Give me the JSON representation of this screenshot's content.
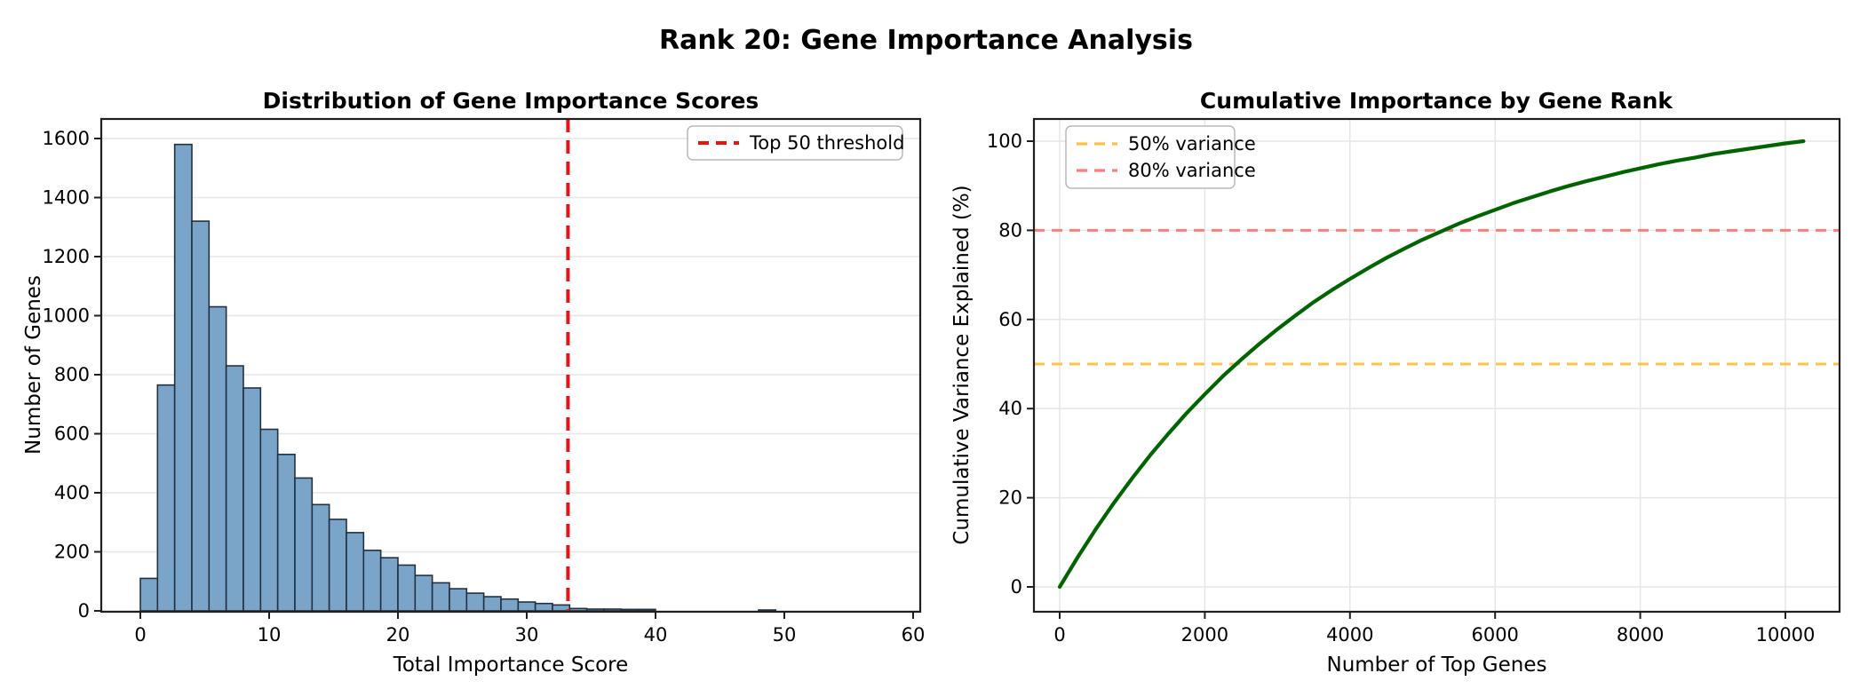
{
  "suptitle": "Rank 20: Gene Importance Analysis",
  "colors": {
    "bar_fill": "#7AA5C9",
    "bar_edge": "#22313F",
    "grid": "#E6E6E6",
    "spine": "#1F1F1F",
    "threshold_red": "#EE1111",
    "line_green": "#006400",
    "hline_orange": "#FFC04D",
    "hline_salmon": "#FB7E7E",
    "legend_border": "#B9B9B9",
    "legend_bg": "#FFFFFF"
  },
  "chart_data": [
    {
      "type": "bar",
      "subtype": "histogram",
      "title": "Distribution of Gene Importance Scores",
      "xlabel": "Total Importance Score",
      "ylabel": "Number of Genes",
      "xlim": [
        -3.0,
        60.6
      ],
      "ylim": [
        0,
        1666
      ],
      "xticks": [
        0,
        10,
        20,
        30,
        40,
        50,
        60
      ],
      "yticks": [
        0,
        200,
        400,
        600,
        800,
        1000,
        1200,
        1400,
        1600
      ],
      "grid": "horizontal",
      "bin_start": 0,
      "bin_width": 1.3333,
      "counts": [
        110,
        765,
        1580,
        1320,
        1030,
        830,
        755,
        615,
        530,
        450,
        360,
        310,
        265,
        205,
        180,
        155,
        120,
        95,
        75,
        60,
        48,
        40,
        30,
        25,
        20,
        8,
        6,
        6,
        5,
        5,
        0,
        0,
        0,
        0,
        0,
        0,
        3,
        0,
        0,
        0,
        0,
        0,
        0,
        0,
        0
      ],
      "threshold_line": {
        "x": 33.2,
        "label": "Top 50 threshold"
      },
      "legend": {
        "position": "upper right",
        "entries": [
          {
            "label": "Top 50 threshold",
            "color_key": "threshold_red"
          }
        ]
      }
    },
    {
      "type": "line",
      "title": "Cumulative Importance by Gene Rank",
      "xlabel": "Number of Top Genes",
      "ylabel": "Cumulative Variance Explained (%)",
      "xlim": [
        -360,
        10750
      ],
      "ylim": [
        -5.6,
        105
      ],
      "xticks": [
        0,
        2000,
        4000,
        6000,
        8000,
        10000
      ],
      "yticks": [
        0,
        20,
        40,
        60,
        80,
        100
      ],
      "grid": "both",
      "series": [
        {
          "name": "cumulative-variance",
          "color_key": "line_green",
          "x": [
            0,
            250,
            500,
            750,
            1000,
            1250,
            1500,
            1750,
            2000,
            2250,
            2500,
            2750,
            3000,
            3250,
            3500,
            3750,
            4000,
            4250,
            4500,
            4750,
            5000,
            5250,
            5500,
            5750,
            6000,
            6250,
            6500,
            6750,
            7000,
            7250,
            7500,
            7750,
            8000,
            8250,
            8500,
            8750,
            9000,
            9250,
            9500,
            9750,
            10000,
            10250
          ],
          "y": [
            0,
            6.7,
            13.0,
            18.9,
            24.4,
            29.6,
            34.4,
            39.0,
            43.2,
            47.3,
            51.0,
            54.5,
            57.8,
            60.9,
            63.9,
            66.6,
            69.1,
            71.5,
            73.8,
            75.9,
            77.9,
            79.7,
            81.5,
            83.1,
            84.6,
            86.1,
            87.4,
            88.7,
            89.9,
            91.0,
            92.0,
            93.0,
            93.9,
            94.8,
            95.6,
            96.3,
            97.1,
            97.7,
            98.3,
            98.9,
            99.5,
            100.0
          ]
        }
      ],
      "hlines": [
        {
          "y": 50,
          "label": "50% variance",
          "color_key": "hline_orange"
        },
        {
          "y": 80,
          "label": "80% variance",
          "color_key": "hline_salmon"
        }
      ],
      "legend": {
        "position": "upper left",
        "entries": [
          {
            "label": "50% variance",
            "color_key": "hline_orange"
          },
          {
            "label": "80% variance",
            "color_key": "hline_salmon"
          }
        ]
      }
    }
  ]
}
